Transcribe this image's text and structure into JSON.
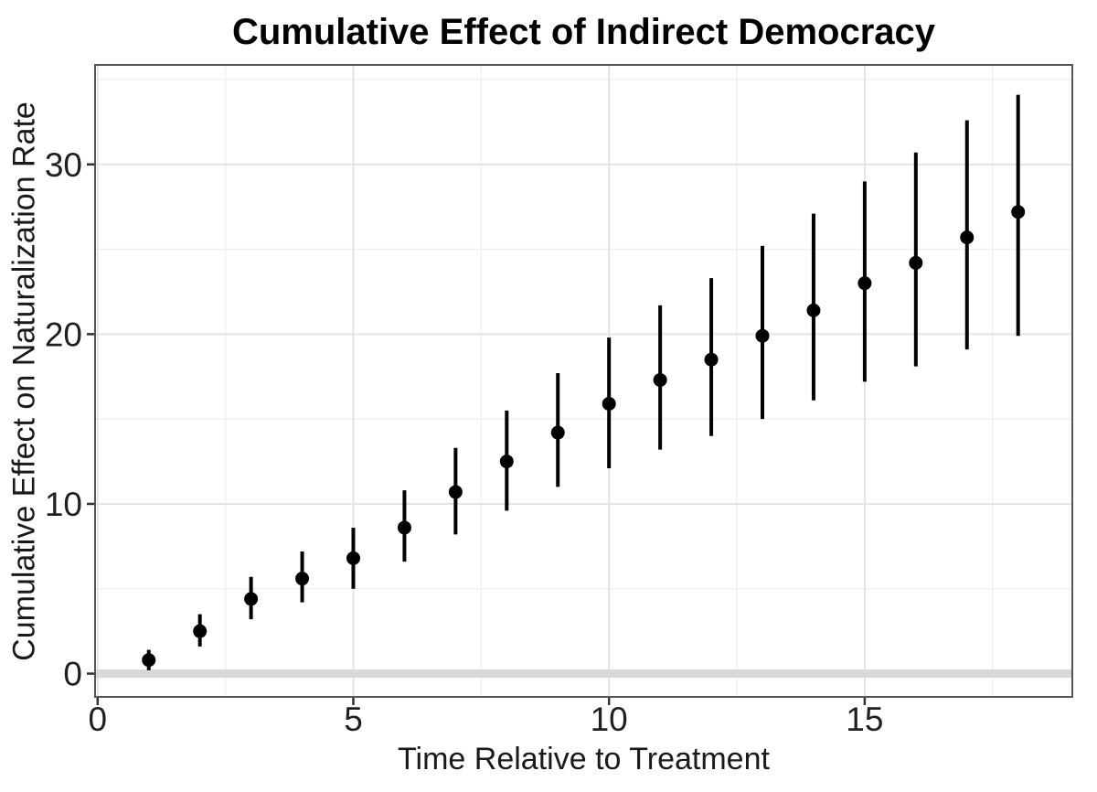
{
  "chart_data": {
    "type": "pointrange",
    "title": "Cumulative Effect of Indirect Democracy",
    "xlabel": "Time Relative to Treatment",
    "ylabel": "Cumulative Effect on Naturalization Rate",
    "x_ticks": [
      0,
      5,
      10,
      15
    ],
    "y_ticks": [
      0,
      10,
      20,
      30
    ],
    "x_minor": [
      2.5,
      7.5,
      12.5,
      17.5
    ],
    "y_minor": [
      5,
      15,
      25,
      35
    ],
    "xlim": [
      -0.05,
      19.06
    ],
    "ylim": [
      -1.37,
      35.86
    ],
    "grid": true,
    "legend": "none",
    "reference_line_y": 0,
    "points": [
      {
        "x": 1,
        "y": 0.8,
        "lo": 0.2,
        "hi": 1.4
      },
      {
        "x": 2,
        "y": 2.5,
        "lo": 1.6,
        "hi": 3.5
      },
      {
        "x": 3,
        "y": 4.4,
        "lo": 3.2,
        "hi": 5.7
      },
      {
        "x": 4,
        "y": 5.6,
        "lo": 4.2,
        "hi": 7.2
      },
      {
        "x": 5,
        "y": 6.8,
        "lo": 5.0,
        "hi": 8.6
      },
      {
        "x": 6,
        "y": 8.6,
        "lo": 6.6,
        "hi": 10.8
      },
      {
        "x": 7,
        "y": 10.7,
        "lo": 8.2,
        "hi": 13.3
      },
      {
        "x": 8,
        "y": 12.5,
        "lo": 9.6,
        "hi": 15.5
      },
      {
        "x": 9,
        "y": 14.2,
        "lo": 11.0,
        "hi": 17.7
      },
      {
        "x": 10,
        "y": 15.9,
        "lo": 12.1,
        "hi": 19.8
      },
      {
        "x": 11,
        "y": 17.3,
        "lo": 13.2,
        "hi": 21.7
      },
      {
        "x": 12,
        "y": 18.5,
        "lo": 14.0,
        "hi": 23.3
      },
      {
        "x": 13,
        "y": 19.9,
        "lo": 15.0,
        "hi": 25.2
      },
      {
        "x": 14,
        "y": 21.4,
        "lo": 16.1,
        "hi": 27.1
      },
      {
        "x": 15,
        "y": 23.0,
        "lo": 17.2,
        "hi": 29.0
      },
      {
        "x": 16,
        "y": 24.2,
        "lo": 18.1,
        "hi": 30.7
      },
      {
        "x": 17,
        "y": 25.7,
        "lo": 19.1,
        "hi": 32.6
      },
      {
        "x": 18,
        "y": 27.2,
        "lo": 19.9,
        "hi": 34.1
      }
    ],
    "colors": {
      "point": "#000000",
      "errorbar": "#000000",
      "reference_band": "#d8d8d8",
      "grid_major": "#e4e4e4",
      "grid_minor": "#efefef",
      "panel_border": "#555555",
      "tick_mark": "#333333",
      "tick_text": "#1f1f1f",
      "background": "#ffffff"
    }
  }
}
